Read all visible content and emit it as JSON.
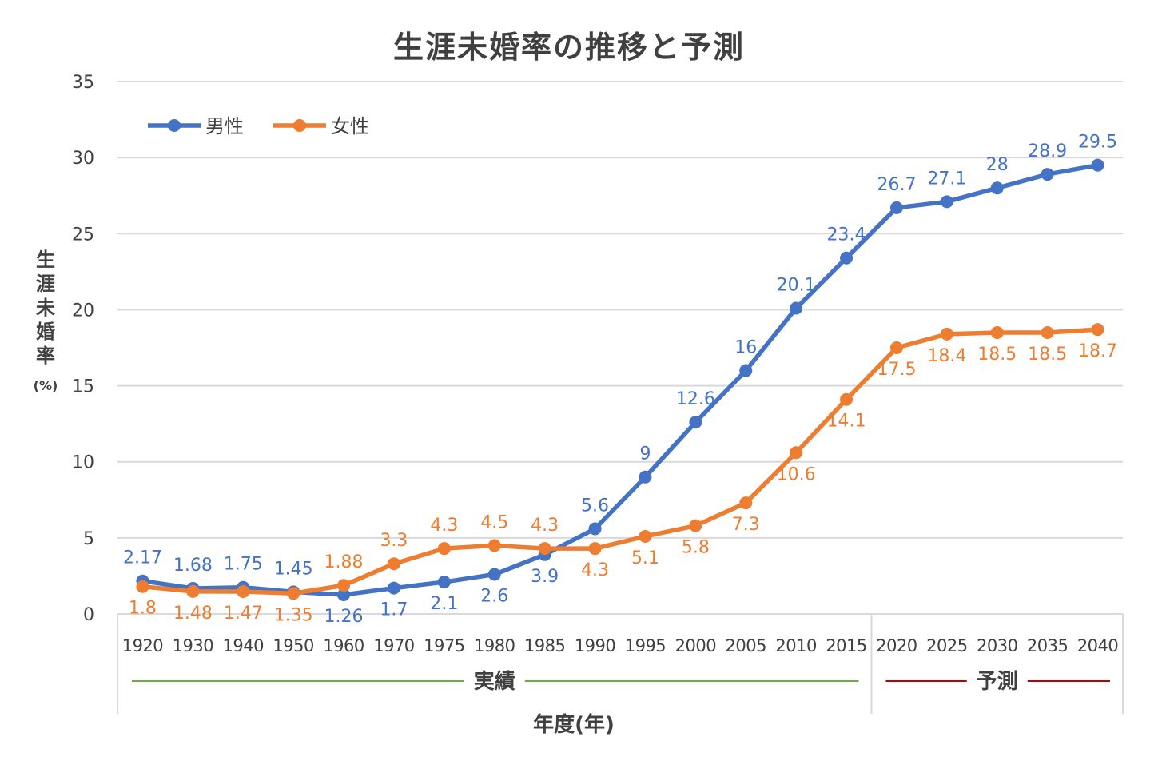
{
  "chart_data": {
    "type": "line",
    "title": "生涯未婚率の推移と予測",
    "ylabel": "生涯未婚率",
    "yunit": "(%)",
    "xlabel": "年度(年)",
    "ylim": [
      0,
      35
    ],
    "yticks": [
      0,
      5,
      10,
      15,
      20,
      25,
      30,
      35
    ],
    "grid": true,
    "legend_position": "top-left",
    "categories": [
      "1920",
      "1930",
      "1940",
      "1950",
      "1960",
      "1970",
      "1975",
      "1980",
      "1985",
      "1990",
      "1995",
      "2000",
      "2005",
      "2010",
      "2015",
      "2020",
      "2025",
      "2030",
      "2035",
      "2040"
    ],
    "series": [
      {
        "name": "男性",
        "color": "#4472C4",
        "values": [
          2.17,
          1.68,
          1.75,
          1.45,
          1.26,
          1.7,
          2.1,
          2.6,
          3.9,
          5.6,
          9,
          12.6,
          16,
          20.1,
          23.4,
          26.7,
          27.1,
          28,
          28.9,
          29.5
        ],
        "labels": [
          "2.17",
          "1.68",
          "1.75",
          "1.45",
          "1.26",
          "1.7",
          "2.1",
          "2.6",
          "3.9",
          "5.6",
          "9",
          "12.6",
          "16",
          "20.1",
          "23.4",
          "26.7",
          "27.1",
          "28",
          "28.9",
          "29.5"
        ]
      },
      {
        "name": "女性",
        "color": "#ED7D31",
        "values": [
          1.8,
          1.48,
          1.47,
          1.35,
          1.88,
          3.3,
          4.3,
          4.5,
          4.3,
          4.3,
          5.1,
          5.8,
          7.3,
          10.6,
          14.1,
          17.5,
          18.4,
          18.5,
          18.5,
          18.7
        ],
        "labels": [
          "1.8",
          "1.48",
          "1.47",
          "1.35",
          "1.88",
          "3.3",
          "4.3",
          "4.5",
          "4.3",
          "4.3",
          "5.1",
          "5.8",
          "7.3",
          "10.6",
          "14.1",
          "17.5",
          "18.4",
          "18.5",
          "18.5",
          "18.7"
        ]
      }
    ],
    "groups": [
      {
        "label": "実績",
        "from": "1920",
        "to": "2015",
        "color": "#70AD47"
      },
      {
        "label": "予測",
        "from": "2020",
        "to": "2040",
        "color": "#C00000"
      }
    ]
  }
}
